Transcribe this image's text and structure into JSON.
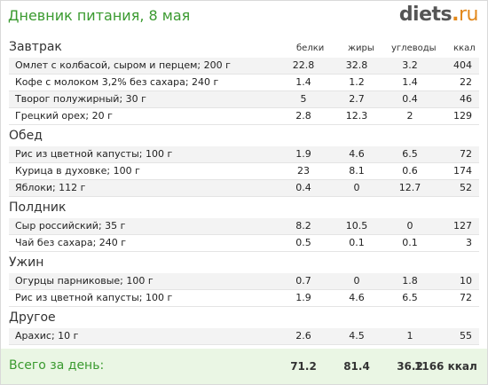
{
  "header": {
    "title": "Дневник питания, 8 мая",
    "logo_main": "diets",
    "logo_dot": ".",
    "logo_tld": "ru"
  },
  "columns": {
    "protein": "белки",
    "fat": "жиры",
    "carbs": "углеводы",
    "kcal": "ккал"
  },
  "sections": [
    {
      "title": "Завтрак",
      "items": [
        {
          "name": "Омлет с колбасой, сыром и перцем; 200 г",
          "protein": "22.8",
          "fat": "32.8",
          "carbs": "3.2",
          "kcal": "404"
        },
        {
          "name": "Кофе с молоком 3,2% без сахара; 240 г",
          "protein": "1.4",
          "fat": "1.2",
          "carbs": "1.4",
          "kcal": "22"
        },
        {
          "name": "Творог полужирный; 30 г",
          "protein": "5",
          "fat": "2.7",
          "carbs": "0.4",
          "kcal": "46"
        },
        {
          "name": "Грецкий орех; 20 г",
          "protein": "2.8",
          "fat": "12.3",
          "carbs": "2",
          "kcal": "129"
        }
      ]
    },
    {
      "title": "Обед",
      "items": [
        {
          "name": "Рис из цветной капусты; 100 г",
          "protein": "1.9",
          "fat": "4.6",
          "carbs": "6.5",
          "kcal": "72"
        },
        {
          "name": "Курица в духовке; 100 г",
          "protein": "23",
          "fat": "8.1",
          "carbs": "0.6",
          "kcal": "174"
        },
        {
          "name": "Яблоки; 112 г",
          "protein": "0.4",
          "fat": "0",
          "carbs": "12.7",
          "kcal": "52"
        }
      ]
    },
    {
      "title": "Полдник",
      "items": [
        {
          "name": "Сыр российский; 35 г",
          "protein": "8.2",
          "fat": "10.5",
          "carbs": "0",
          "kcal": "127"
        },
        {
          "name": "Чай без сахара; 240 г",
          "protein": "0.5",
          "fat": "0.1",
          "carbs": "0.1",
          "kcal": "3"
        }
      ]
    },
    {
      "title": "Ужин",
      "items": [
        {
          "name": "Огурцы парниковые; 100 г",
          "protein": "0.7",
          "fat": "0",
          "carbs": "1.8",
          "kcal": "10"
        },
        {
          "name": "Рис из цветной капусты; 100 г",
          "protein": "1.9",
          "fat": "4.6",
          "carbs": "6.5",
          "kcal": "72"
        }
      ]
    },
    {
      "title": "Другое",
      "items": [
        {
          "name": "Арахис; 10 г",
          "protein": "2.6",
          "fat": "4.5",
          "carbs": "1",
          "kcal": "55"
        }
      ]
    }
  ],
  "totals": {
    "label": "Всего за день:",
    "protein": "71.2",
    "fat": "81.4",
    "carbs": "36.2",
    "kcal": "1166 ккал"
  }
}
